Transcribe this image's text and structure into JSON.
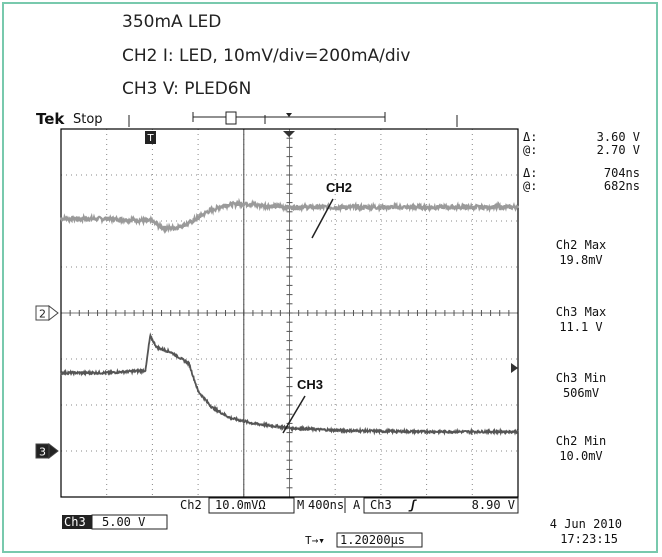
{
  "captions": [
    "350mA LED",
    "CH2 I: LED, 10mV/div=200mA/div",
    "CH3 V: PLED6N"
  ],
  "header": {
    "brand": "Tek",
    "state": "Stop",
    "trigger_marker": "T"
  },
  "measurements": {
    "cursor_v": [
      {
        "sym": "Δ:",
        "val": "3.60 V"
      },
      {
        "sym": "@:",
        "val": "2.70 V"
      }
    ],
    "cursor_t": [
      {
        "sym": "Δ:",
        "val": "704ns"
      },
      {
        "sym": "@:",
        "val": "682ns"
      }
    ],
    "stats": [
      {
        "label": "Ch2 Max",
        "value": "19.8mV"
      },
      {
        "label": "Ch3 Max",
        "value": "11.1 V"
      },
      {
        "label": "Ch3 Min",
        "value": "506mV"
      },
      {
        "label": "Ch2 Min",
        "value": "10.0mV"
      }
    ]
  },
  "footer": {
    "ch2_label": "Ch2",
    "ch2_scale": "10.0mVΩ",
    "m_label": "M",
    "timebase": "400ns",
    "a_label": "A",
    "trig_ch": "Ch3",
    "trig_slope": "ʃ",
    "trig_level": "8.90 V",
    "ch3_label": "Ch3",
    "ch3_scale": "5.00 V",
    "delay_icon": "T→▾",
    "delay": "1.20200µs",
    "date": "4 Jun  2010",
    "time": "17:23:15"
  },
  "chart_data": {
    "type": "line",
    "xlabel": "",
    "ylabel": "",
    "grid": true,
    "divisions": {
      "x": 10,
      "y": 8
    },
    "xlim": [
      0,
      10
    ],
    "ylim": [
      0,
      8
    ],
    "units": "divisions",
    "series": [
      {
        "name": "CH2",
        "color": "#9a9a9a",
        "x": [
          0,
          1,
          2.0,
          2.2,
          2.5,
          2.8,
          3.2,
          3.6,
          4.0,
          4.5,
          5,
          6,
          7,
          8,
          9,
          10
        ],
        "y": [
          6.05,
          6.05,
          6.0,
          5.85,
          5.85,
          5.95,
          6.2,
          6.35,
          6.38,
          6.33,
          6.3,
          6.3,
          6.3,
          6.3,
          6.3,
          6.3
        ]
      },
      {
        "name": "CH3",
        "color": "#555555",
        "x": [
          0,
          1,
          1.85,
          1.95,
          2.1,
          2.4,
          2.8,
          3.0,
          3.3,
          3.7,
          4.2,
          5,
          6,
          7,
          8,
          10
        ],
        "y": [
          2.7,
          2.7,
          2.75,
          3.5,
          3.25,
          3.15,
          2.9,
          2.3,
          1.95,
          1.72,
          1.6,
          1.5,
          1.45,
          1.43,
          1.42,
          1.42
        ]
      }
    ],
    "annotations": [
      {
        "text": "CH2",
        "series": "CH2"
      },
      {
        "text": "CH3",
        "series": "CH3"
      }
    ],
    "channel_markers": [
      {
        "text": "2",
        "level": 4.0
      },
      {
        "text": "3",
        "level": 1.0
      }
    ],
    "cursors": {
      "vertical_at": 4.0,
      "horizontal_at": [],
      "trigger_at": 2.0
    }
  }
}
